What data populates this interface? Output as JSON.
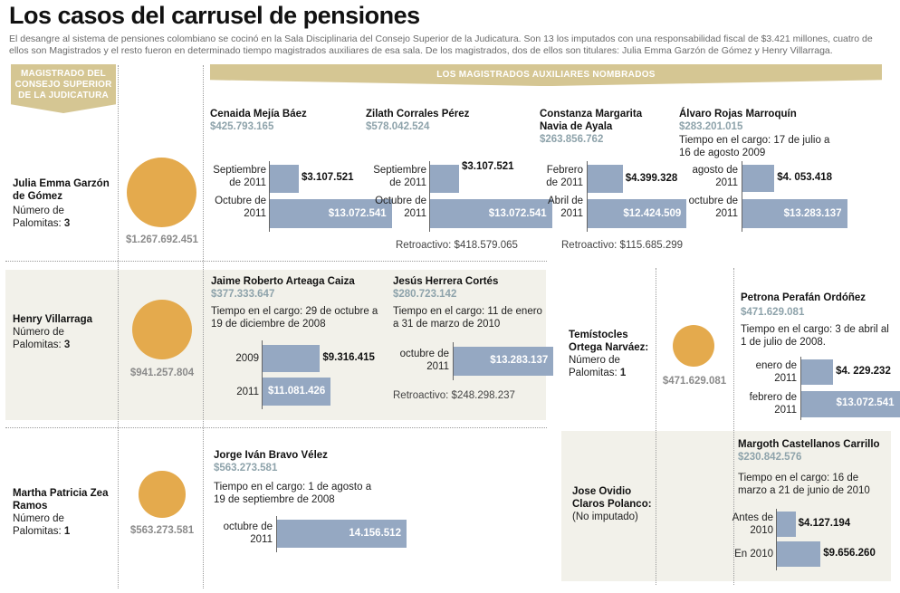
{
  "title": "Los casos del carrusel de pensiones",
  "subtitle": "El desangre al sistema de pensiones colombiano se cocinó  en la Sala Disciplinaria del Consejo Superior de la Judicatura. Son 13 los imputados con una responsabilidad fiscal de $3.421 millones,  cuatro de ellos son Magistrados y el resto fueron en determinado tiempo magistrados auxiliares de esa sala. De los magistrados, dos de ellos son titulares: Julia Emma Garzón de Gómez y  Henry Villarraga.",
  "headers": {
    "magistrado": "MAGISTRADO DEL CONSEJO SUPERIOR DE LA JUDICATURA",
    "auxiliares": "LOS MAGISTRADOS AUXILIARES NOMBRADOS"
  },
  "colors": {
    "circle": "#e4aa4d",
    "bar": "#95a8c2",
    "header": "#d5c693",
    "band": "#f2f1ea"
  },
  "magistrates": {
    "julia": {
      "name": "Julia Emma Garzón de Gómez",
      "palomitas_label": "Número de Palomitas:",
      "palomitas": "3",
      "total": "$1.267.692.451",
      "amount": 1267692451
    },
    "henry": {
      "name": "Henry Villarraga",
      "palomitas_label": "Número de Palomitas:",
      "palomitas": "3",
      "total": "$941.257.804",
      "amount": 941257804
    },
    "martha": {
      "name": "Martha Patricia Zea Ramos",
      "palomitas_label": "Número de Palomitas:",
      "palomitas": "1",
      "total": "$563.273.581",
      "amount": 563273581
    },
    "temistocles": {
      "name": "Temístocles Ortega Narváez:",
      "palomitas_label": "Número de Palomitas:",
      "palomitas": "1",
      "total": "$471.629.081",
      "amount": 471629081
    },
    "jose": {
      "name": "Jose Ovidio Claros Polanco:",
      "note": "(No imputado)"
    }
  },
  "auxiliaries": {
    "cenaida": {
      "name": "Cenaida Mejía Báez",
      "total": "$425.793.165",
      "bars": [
        {
          "label": "Septiembre de 2011",
          "display": "$3.107.521",
          "value": 3107521
        },
        {
          "label": "Octubre de 2011",
          "display": "$13.072.541",
          "value": 13072541
        }
      ]
    },
    "zilath": {
      "name": "Zilath Corrales Pérez",
      "total": "$578.042.524",
      "bars": [
        {
          "label": "Septiembre de 2011",
          "display": "$3.107.521",
          "value": 3107521
        },
        {
          "label": "Octubre de 2011",
          "display": "$13.072.541",
          "value": 13072541
        }
      ],
      "retro": "Retroactivo: $418.579.065"
    },
    "constanza": {
      "name": "Constanza Margarita Navia de Ayala",
      "total": "$263.856.762",
      "bars": [
        {
          "label": "Febrero de 2011",
          "display": "$4.399.328",
          "value": 4399328
        },
        {
          "label": "Abril de 2011",
          "display": "$12.424.509",
          "value": 12424509
        }
      ],
      "retro": "Retroactivo: $115.685.299"
    },
    "alvaro": {
      "name": "Álvaro Rojas Marroquín",
      "total": "$283.201.015",
      "tenure": "Tiempo en el cargo: 17 de julio a 16 de agosto 2009",
      "bars": [
        {
          "label": "agosto de 2011",
          "display": "$4. 053.418",
          "value": 4053418
        },
        {
          "label": "octubre de 2011",
          "display": "$13.283.137",
          "value": 13283137
        }
      ]
    },
    "jaime": {
      "name": "Jaime Roberto Arteaga Caiza",
      "total": "$377.333.647",
      "tenure": "Tiempo en el cargo: 29 de octubre a 19 de diciembre de 2008",
      "bars": [
        {
          "label": "2009",
          "display": "$9.316.415",
          "value": 9316415
        },
        {
          "label": "2011",
          "display": "$11.081.426",
          "value": 11081426
        }
      ]
    },
    "jesus": {
      "name": "Jesús Herrera Cortés",
      "total": "$280.723.142",
      "tenure": "Tiempo en el cargo: 11 de enero a 31 de marzo de 2010",
      "bars": [
        {
          "label": "octubre de 2011",
          "display": "$13.283.137",
          "value": 13283137
        }
      ],
      "retro": "Retroactivo: $248.298.237"
    },
    "petrona": {
      "name": "Petrona Perafán  Ordóñez",
      "total": "$471.629.081",
      "tenure": "Tiempo en el cargo: 3 de abril al 1 de julio de 2008.",
      "bars": [
        {
          "label": "enero de 2011",
          "display": "$4. 229.232",
          "value": 4229232
        },
        {
          "label": "febrero de 2011",
          "display": "$13.072.541",
          "value": 13072541
        }
      ]
    },
    "jorge": {
      "name": "Jorge Iván Bravo Vélez",
      "total": "$563.273.581",
      "tenure": "Tiempo en el cargo: 1 de agosto a 19 de septiembre de 2008",
      "bars": [
        {
          "label": "octubre de 2011",
          "display": "14.156.512",
          "value": 14156512
        }
      ]
    },
    "margoth": {
      "name": "Margoth Castellanos Carrillo",
      "total": "$230.842.576",
      "tenure": "Tiempo en el cargo: 16 de marzo a 21 de junio de 2010",
      "bars": [
        {
          "label": "Antes de 2010",
          "display": "$4.127.194",
          "value": 4127194
        },
        {
          "label": "En 2010",
          "display": "$9.656.260",
          "value": 9656260
        }
      ]
    }
  }
}
